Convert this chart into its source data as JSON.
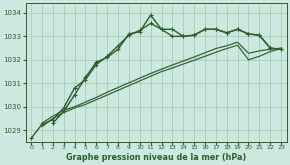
{
  "bg_color": "#cce8df",
  "grid_color": "#aaccbb",
  "line_color_dark": "#2a5e2a",
  "line_color_med": "#336633",
  "xlabel": "Graphe pression niveau de la mer (hPa)",
  "ylim": [
    1028.5,
    1034.4
  ],
  "xlim": [
    -0.5,
    23.5
  ],
  "yticks": [
    1029,
    1030,
    1031,
    1032,
    1033,
    1034
  ],
  "xticks": [
    0,
    1,
    2,
    3,
    4,
    5,
    6,
    7,
    8,
    9,
    10,
    11,
    12,
    13,
    14,
    15,
    16,
    17,
    18,
    19,
    20,
    21,
    22,
    23
  ],
  "s1_x": [
    0,
    1,
    2,
    3,
    4,
    5,
    6,
    7,
    8,
    9,
    10,
    11,
    12,
    13,
    14,
    15,
    16,
    17,
    18,
    19,
    20,
    21,
    22,
    23
  ],
  "s1_y": [
    1028.65,
    1029.25,
    1029.45,
    1029.95,
    1030.8,
    1031.15,
    1031.8,
    1032.15,
    1032.6,
    1033.05,
    1033.25,
    1033.55,
    1033.3,
    1033.0,
    1033.0,
    1033.05,
    1033.3,
    1033.3,
    1033.15,
    1033.3,
    1033.1,
    1033.05,
    1032.5,
    1032.45
  ],
  "s2_x": [
    2,
    3,
    4,
    5,
    6,
    7,
    8,
    9,
    10,
    11,
    12,
    13,
    14,
    15,
    16,
    17,
    18,
    19,
    20,
    21,
    22,
    23
  ],
  "s2_y": [
    1029.3,
    1029.8,
    1030.5,
    1031.25,
    1031.9,
    1032.1,
    1032.45,
    1033.1,
    1033.2,
    1033.9,
    1033.3,
    1033.3,
    1033.0,
    1033.05,
    1033.3,
    1033.3,
    1033.15,
    1033.3,
    1033.1,
    1033.05,
    1032.5,
    1032.45
  ],
  "s3_x": [
    1,
    2,
    3,
    4,
    5,
    6,
    7,
    8,
    9,
    10,
    11,
    12,
    13,
    14,
    15,
    16,
    17,
    18,
    19,
    20,
    21,
    22,
    23
  ],
  "s3_y": [
    1029.3,
    1029.6,
    1029.85,
    1030.0,
    1030.2,
    1030.4,
    1030.62,
    1030.82,
    1031.02,
    1031.22,
    1031.42,
    1031.6,
    1031.78,
    1031.95,
    1032.12,
    1032.3,
    1032.48,
    1032.6,
    1032.75,
    1032.28,
    1032.38,
    1032.45,
    1032.5
  ],
  "s4_x": [
    1,
    2,
    3,
    4,
    5,
    6,
    7,
    8,
    9,
    10,
    11,
    12,
    13,
    14,
    15,
    16,
    17,
    18,
    19,
    20,
    21,
    22,
    23
  ],
  "s4_y": [
    1029.15,
    1029.5,
    1029.75,
    1029.95,
    1030.1,
    1030.3,
    1030.5,
    1030.7,
    1030.9,
    1031.1,
    1031.3,
    1031.5,
    1031.65,
    1031.82,
    1031.98,
    1032.15,
    1032.32,
    1032.48,
    1032.62,
    1032.0,
    1032.15,
    1032.35,
    1032.48
  ]
}
